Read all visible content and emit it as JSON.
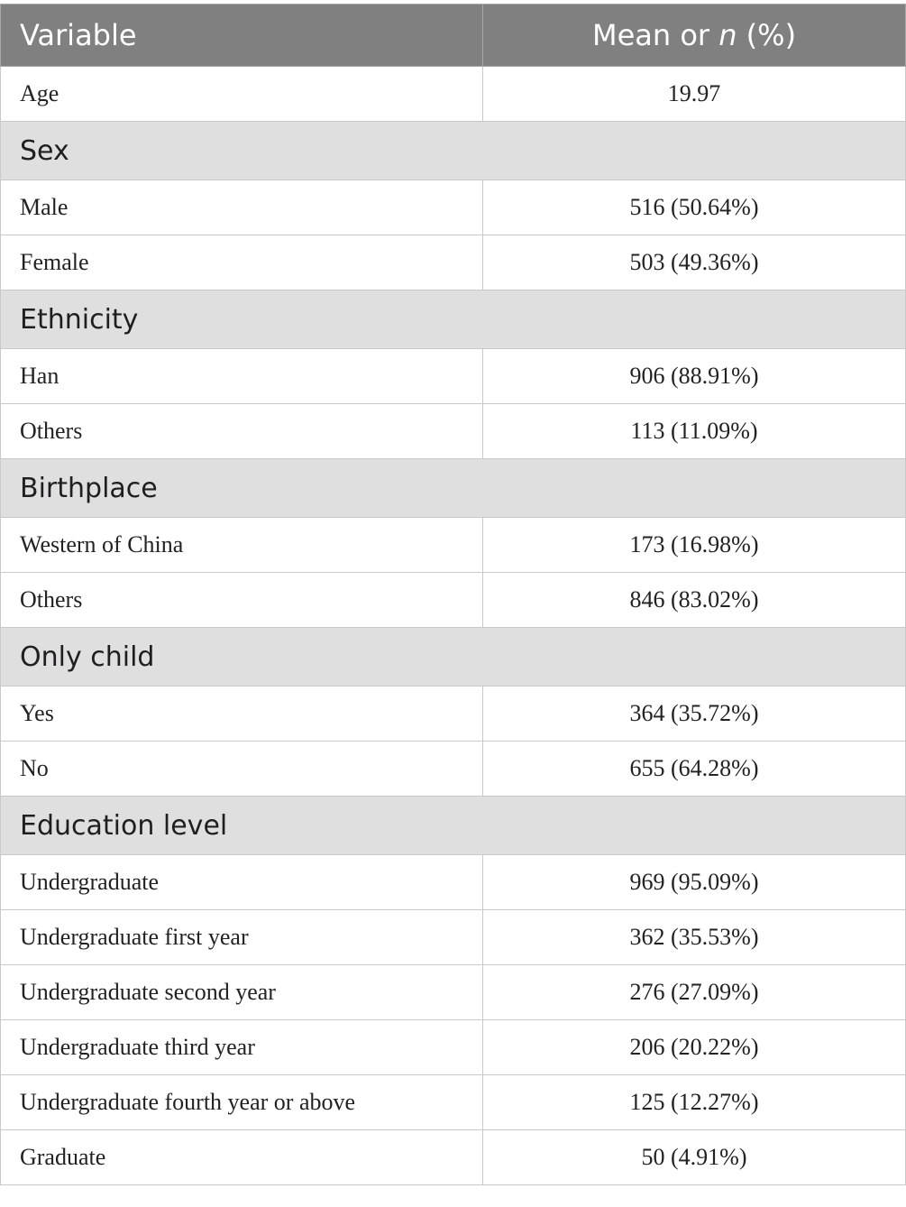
{
  "header": {
    "variable_label": "Variable",
    "value_label_prefix": "Mean or ",
    "value_label_italic": "n",
    "value_label_suffix": " (%)"
  },
  "rows": [
    {
      "type": "data",
      "label": "Age",
      "value": "19.97"
    },
    {
      "type": "section",
      "label": "Sex"
    },
    {
      "type": "data",
      "label": "Male",
      "value": "516 (50.64%)"
    },
    {
      "type": "data",
      "label": "Female",
      "value": "503 (49.36%)"
    },
    {
      "type": "section",
      "label": "Ethnicity"
    },
    {
      "type": "data",
      "label": "Han",
      "value": "906 (88.91%)"
    },
    {
      "type": "data",
      "label": "Others",
      "value": "113 (11.09%)"
    },
    {
      "type": "section",
      "label": "Birthplace"
    },
    {
      "type": "data",
      "label": "Western of China",
      "value": "173 (16.98%)"
    },
    {
      "type": "data",
      "label": "Others",
      "value": "846 (83.02%)"
    },
    {
      "type": "section",
      "label": "Only child"
    },
    {
      "type": "data",
      "label": "Yes",
      "value": "364 (35.72%)"
    },
    {
      "type": "data",
      "label": "No",
      "value": "655 (64.28%)"
    },
    {
      "type": "section",
      "label": "Education level"
    },
    {
      "type": "data",
      "label": "Undergraduate",
      "value": "969 (95.09%)"
    },
    {
      "type": "data",
      "label": "Undergraduate first year",
      "value": "362 (35.53%)"
    },
    {
      "type": "data",
      "label": "Undergraduate second year",
      "value": "276 (27.09%)"
    },
    {
      "type": "data",
      "label": "Undergraduate third year",
      "value": "206 (20.22%)"
    },
    {
      "type": "data",
      "label": "Undergraduate fourth year or above",
      "value": "125 (12.27%)"
    },
    {
      "type": "data",
      "label": "Graduate",
      "value": "50 (4.91%)"
    }
  ],
  "colors": {
    "header_bg": "#7f807f",
    "header_text": "#ffffff",
    "section_bg": "#e0dfe0",
    "border": "#c9c9c9"
  }
}
